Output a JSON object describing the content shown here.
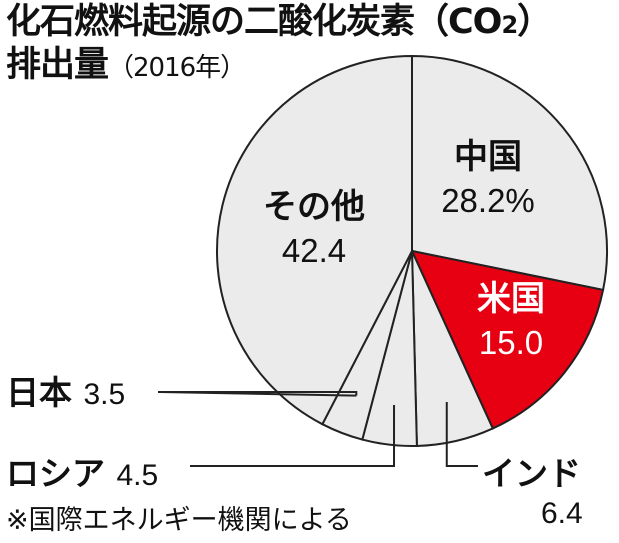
{
  "title": {
    "line1": "化石燃料起源の二酸化炭素（CO",
    "sub": "2",
    "line1_end": "）",
    "line2": "排出量",
    "line2_tail": "（2016年）"
  },
  "note": "※国際エネルギー機関による",
  "colors": {
    "highlight": "#e60012",
    "pie": "#ebebeb",
    "stroke": "#222222"
  },
  "chart_data": {
    "type": "pie",
    "slices": [
      {
        "label": "中国",
        "value": 28.2,
        "value_text": "28.2%"
      },
      {
        "label": "米国",
        "value": 15.0,
        "value_text": "15.0"
      },
      {
        "label": "インド",
        "value": 6.4,
        "value_text": "6.4"
      },
      {
        "label": "ロシア",
        "value": 4.5,
        "value_text": "4.5"
      },
      {
        "label": "日本",
        "value": 3.5,
        "value_text": "3.5"
      },
      {
        "label": "その他",
        "value": 42.4,
        "value_text": "42.4"
      }
    ],
    "highlight": "米国",
    "start": "12 o'clock",
    "direction": "clockwise"
  }
}
